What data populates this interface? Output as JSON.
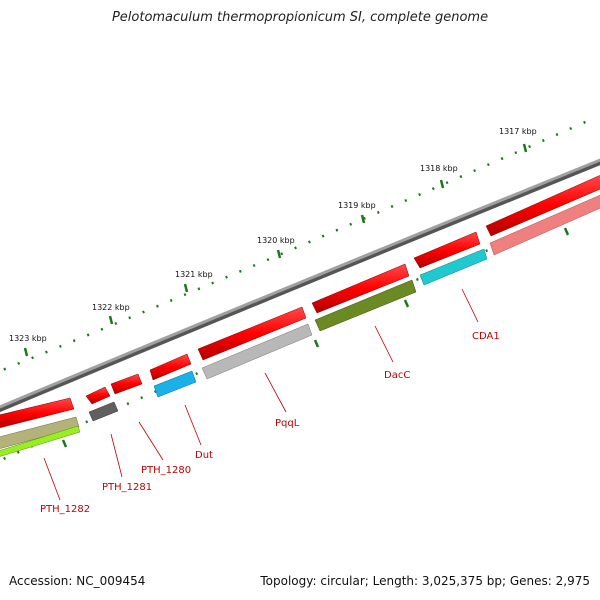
{
  "title": "Pelotomaculum thermopropionicum SI, complete genome",
  "accession": "Accession: NC_009454",
  "topology": "Topology: circular; Length: 3,025,375 bp; Genes: 2,975",
  "ruler": [
    "1317 kbp",
    "1318 kbp",
    "1319 kbp",
    "1320 kbp",
    "1321 kbp",
    "1322 kbp",
    "1323 kbp"
  ],
  "genes": [
    "CDA1",
    "DacC",
    "PqqL",
    "Dut",
    "PTH_1280",
    "PTH_1281",
    "PTH_1282"
  ],
  "colors": {
    "backbone": "#808080",
    "cds": "#ff0000",
    "cda1": "#20c8d0",
    "dacc": "#6b8a23",
    "pqql": "#b8b8b8",
    "dut": "#1ab2e6",
    "pth1281": "#606060",
    "pth1282": "#b3b27a",
    "pth1282b": "#99ee22",
    "pink": "#f08080",
    "tick": "#1a7a1a",
    "label": "#c00000"
  }
}
